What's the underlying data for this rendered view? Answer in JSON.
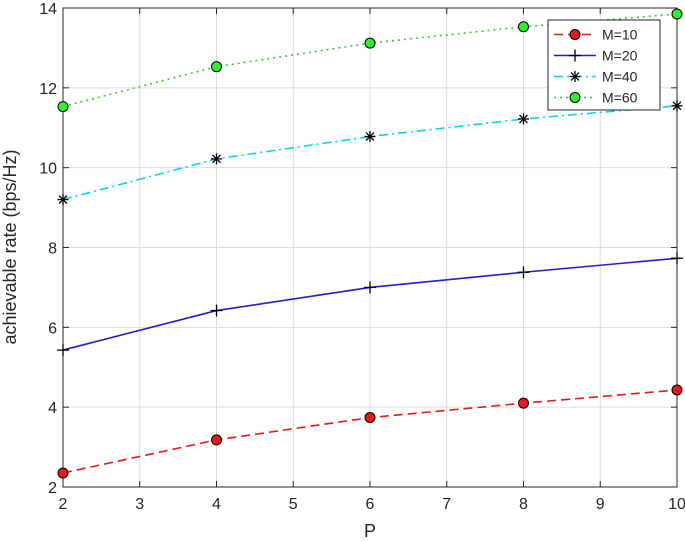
{
  "chart_data": {
    "type": "line",
    "xlabel": "P",
    "ylabel": "achievable rate (bps/Hz)",
    "xlim": [
      2,
      10
    ],
    "ylim": [
      2,
      14
    ],
    "xticks": [
      2,
      3,
      4,
      5,
      6,
      7,
      8,
      9,
      10
    ],
    "yticks": [
      2,
      4,
      6,
      8,
      10,
      12,
      14
    ],
    "grid": true,
    "legend_position": "top-right",
    "x": [
      2,
      4,
      6,
      8,
      10
    ],
    "series": [
      {
        "name": "M=10",
        "values": [
          2.35,
          3.18,
          3.74,
          4.1,
          4.43
        ],
        "color": "#e41a1c",
        "line_style": "dashed",
        "marker": "filled-circle",
        "marker_fill": "#e41a1c"
      },
      {
        "name": "M=20",
        "values": [
          5.43,
          6.42,
          7.0,
          7.38,
          7.73
        ],
        "color": "#1f1fcf",
        "line_style": "solid",
        "marker": "plus",
        "marker_fill": "none"
      },
      {
        "name": "M=40",
        "values": [
          9.2,
          10.22,
          10.78,
          11.22,
          11.55
        ],
        "color": "#00d8e8",
        "line_style": "dash-dot",
        "marker": "asterisk",
        "marker_fill": "none"
      },
      {
        "name": "M=60",
        "values": [
          11.53,
          12.53,
          13.12,
          13.53,
          13.85
        ],
        "color": "#33cc33",
        "line_style": "dotted",
        "marker": "filled-circle",
        "marker_fill": "#33ee33"
      }
    ]
  }
}
